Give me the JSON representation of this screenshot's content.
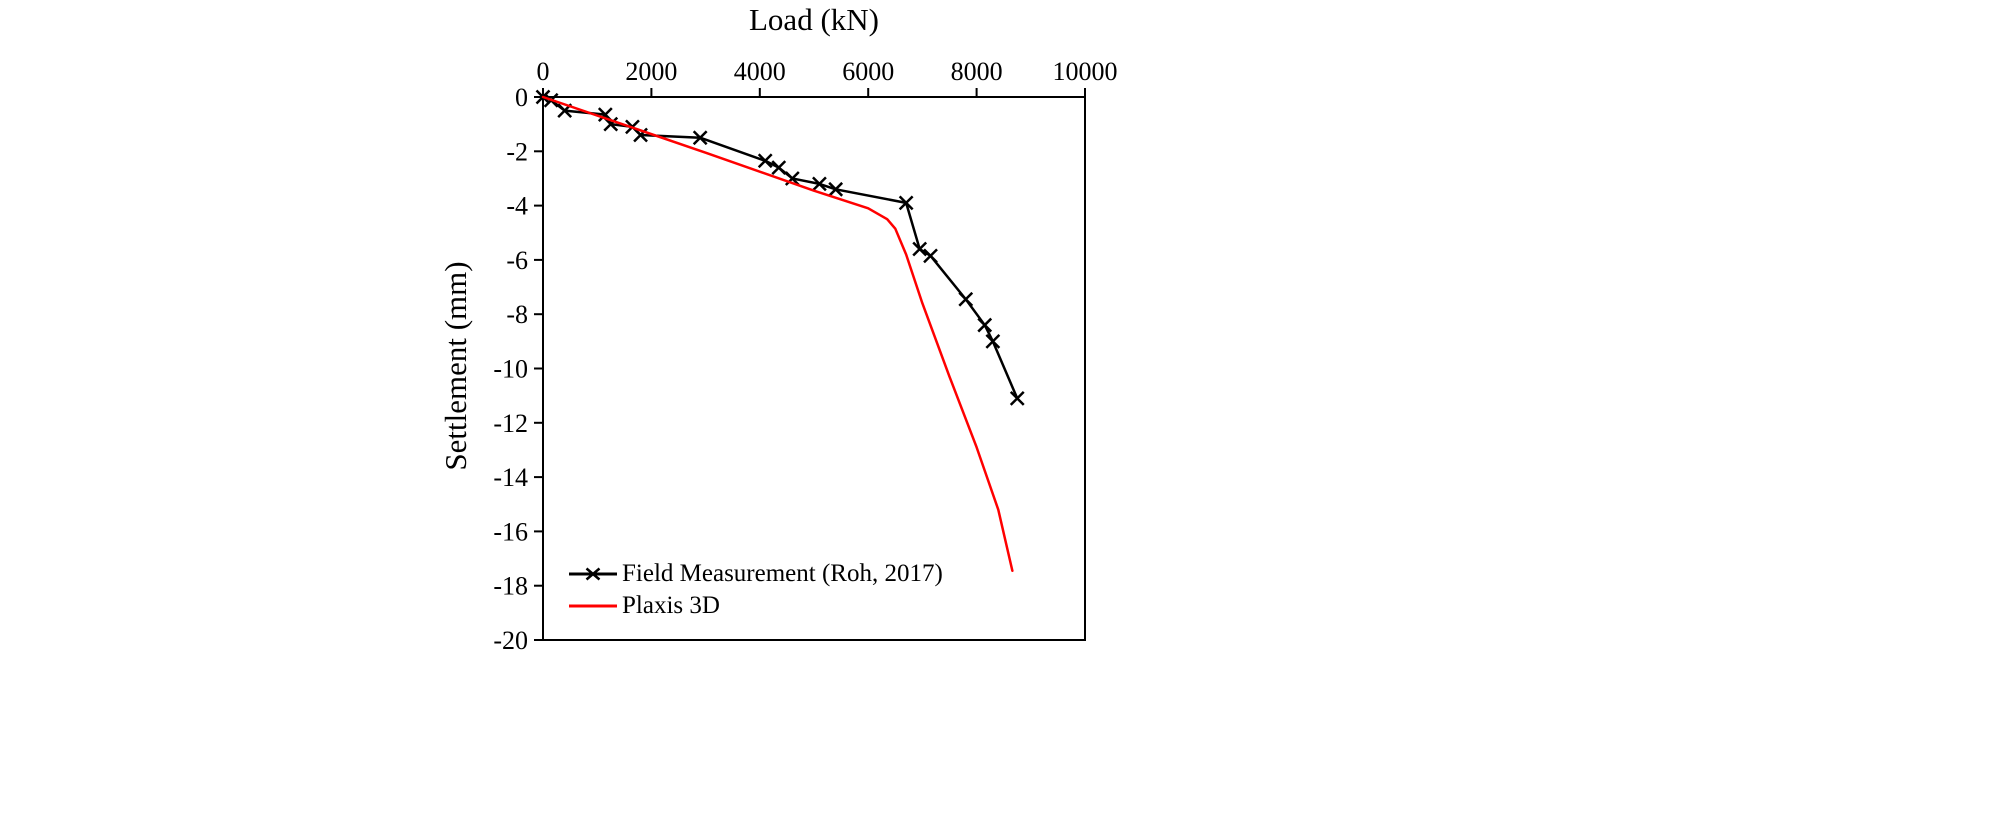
{
  "chart_data": {
    "type": "line",
    "title": "",
    "xlabel": "Load (kN)",
    "ylabel": "Settlement (mm)",
    "xlim": [
      0,
      10000
    ],
    "ylim": [
      -20,
      0
    ],
    "x_ticks": [
      0,
      2000,
      4000,
      6000,
      8000,
      10000
    ],
    "y_ticks": [
      0,
      -2,
      -4,
      -6,
      -8,
      -10,
      -12,
      -14,
      -16,
      -18,
      -20
    ],
    "x_axis_position": "top",
    "grid": false,
    "legend_position": "bottom-left-inside",
    "series": [
      {
        "name": "Field Measurement (Roh, 2017)",
        "color": "#000000",
        "marker": "x",
        "line_width": 2.5,
        "points": [
          [
            0,
            0
          ],
          [
            150,
            -0.12
          ],
          [
            400,
            -0.5
          ],
          [
            1150,
            -0.65
          ],
          [
            1250,
            -1.0
          ],
          [
            1650,
            -1.1
          ],
          [
            1800,
            -1.4
          ],
          [
            2900,
            -1.5
          ],
          [
            4100,
            -2.35
          ],
          [
            4350,
            -2.6
          ],
          [
            4600,
            -3.0
          ],
          [
            5100,
            -3.2
          ],
          [
            5400,
            -3.4
          ],
          [
            6700,
            -3.9
          ],
          [
            6950,
            -5.6
          ],
          [
            7150,
            -5.85
          ],
          [
            7800,
            -7.45
          ],
          [
            8150,
            -8.4
          ],
          [
            8300,
            -9.0
          ],
          [
            8750,
            -11.1
          ]
        ]
      },
      {
        "name": "Plaxis 3D",
        "color": "#ff0000",
        "marker": "none",
        "line_width": 2.5,
        "points": [
          [
            0,
            0
          ],
          [
            3000,
            -2.05
          ],
          [
            5000,
            -3.45
          ],
          [
            6000,
            -4.1
          ],
          [
            6350,
            -4.5
          ],
          [
            6500,
            -4.85
          ],
          [
            6700,
            -5.8
          ],
          [
            7000,
            -7.6
          ],
          [
            7500,
            -10.3
          ],
          [
            8000,
            -12.9
          ],
          [
            8400,
            -15.2
          ],
          [
            8660,
            -17.45
          ]
        ]
      }
    ]
  }
}
